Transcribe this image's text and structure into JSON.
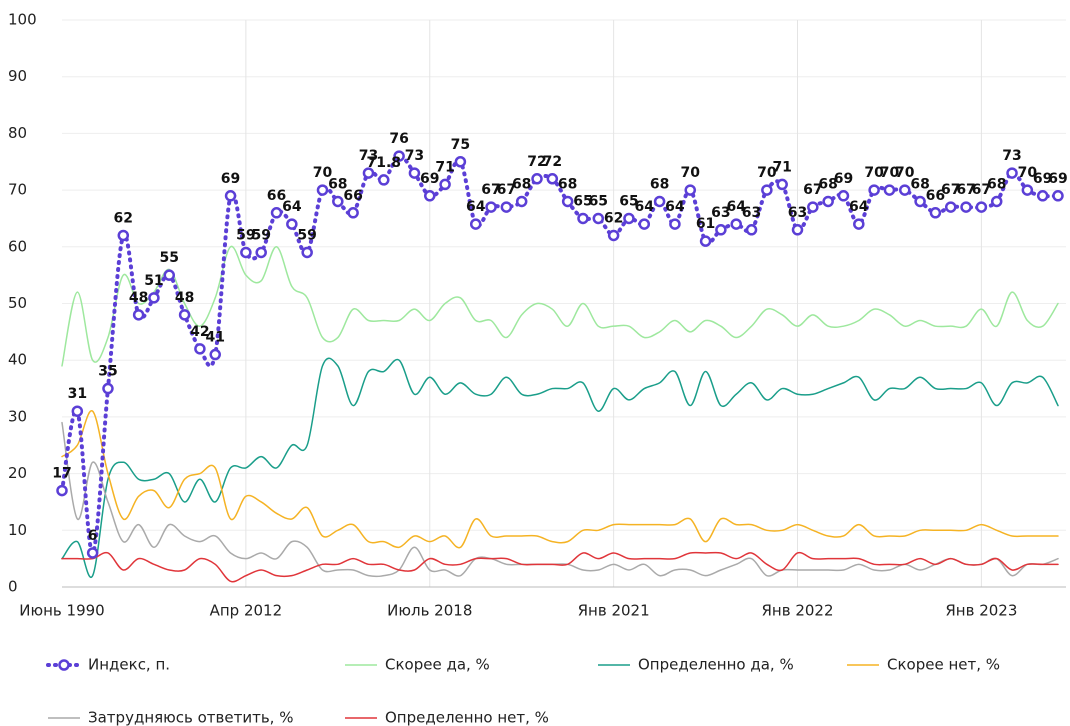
{
  "chart_data": {
    "type": "line",
    "categories": [
      "Июнь 1990",
      null,
      null,
      null,
      null,
      null,
      null,
      null,
      null,
      null,
      null,
      null,
      "Апр 2012",
      null,
      null,
      null,
      null,
      null,
      null,
      null,
      null,
      null,
      null,
      null,
      "Июль 2018",
      null,
      null,
      null,
      null,
      null,
      null,
      null,
      null,
      null,
      null,
      null,
      "Янв 2021",
      null,
      null,
      null,
      null,
      null,
      null,
      null,
      null,
      null,
      null,
      null,
      "Янв 2022",
      null,
      null,
      null,
      null,
      null,
      null,
      null,
      null,
      null,
      null,
      null,
      "Янв 2023",
      null,
      null,
      null,
      null,
      null
    ],
    "series": [
      {
        "name": "Индекс, п.",
        "color": "#5b3fd6",
        "style": "dotted-markers",
        "show_labels": true,
        "values": [
          17,
          31,
          6,
          35,
          62,
          48,
          51,
          55,
          48,
          42,
          41,
          69,
          59,
          59,
          66,
          64,
          59,
          70,
          68,
          66,
          73,
          71.8,
          76,
          73,
          69,
          71,
          75,
          64,
          67,
          67,
          68,
          72,
          72,
          68,
          65,
          65,
          62,
          65,
          64,
          68,
          64,
          70,
          61,
          63,
          64,
          63,
          70,
          71,
          63,
          67,
          68,
          69,
          64,
          70,
          70,
          70,
          68,
          66,
          67,
          67,
          67,
          68,
          73,
          70,
          69,
          69
        ]
      },
      {
        "name": "Скорее да, %",
        "color": "#9ee89e",
        "values": [
          39,
          52,
          40,
          44,
          55,
          50,
          52,
          56,
          50,
          46,
          51,
          60,
          55,
          54,
          60,
          53,
          51,
          44,
          44,
          49,
          47,
          47,
          47,
          49,
          47,
          50,
          51,
          47,
          47,
          44,
          48,
          50,
          49,
          46,
          50,
          46,
          46,
          46,
          44,
          45,
          47,
          45,
          47,
          46,
          44,
          46,
          49,
          48,
          46,
          48,
          46,
          46,
          47,
          49,
          48,
          46,
          47,
          46,
          46,
          46,
          49,
          46,
          52,
          47,
          46,
          50
        ]
      },
      {
        "name": "Определенно да, %",
        "color": "#1a9e8a",
        "values": [
          5,
          8,
          2,
          19,
          22,
          19,
          19,
          20,
          15,
          19,
          15,
          21,
          21,
          23,
          21,
          25,
          25,
          39,
          39,
          32,
          38,
          38,
          40,
          34,
          37,
          34,
          36,
          34,
          34,
          37,
          34,
          34,
          35,
          35,
          36,
          31,
          35,
          33,
          35,
          36,
          38,
          32,
          38,
          32,
          34,
          36,
          33,
          35,
          34,
          34,
          35,
          36,
          37,
          33,
          35,
          35,
          37,
          35,
          35,
          35,
          36,
          32,
          36,
          36,
          37,
          32
        ]
      },
      {
        "name": "Скорее нет, %",
        "color": "#f5b324",
        "values": [
          23,
          25,
          31,
          20,
          12,
          16,
          17,
          14,
          19,
          20,
          21,
          12,
          16,
          15,
          13,
          12,
          14,
          9,
          10,
          11,
          8,
          8,
          7,
          9,
          8,
          9,
          7,
          12,
          9,
          9,
          9,
          9,
          8,
          8,
          10,
          10,
          11,
          11,
          11,
          11,
          11,
          12,
          8,
          12,
          11,
          11,
          10,
          10,
          11,
          10,
          9,
          9,
          11,
          9,
          9,
          9,
          10,
          10,
          10,
          10,
          11,
          10,
          9,
          9,
          9,
          9
        ]
      },
      {
        "name": "Затрудняюсь ответить, %",
        "color": "#aaaaaa",
        "values": [
          29,
          12,
          22,
          15,
          8,
          11,
          7,
          11,
          9,
          8,
          9,
          6,
          5,
          6,
          5,
          8,
          7,
          3,
          3,
          3,
          2,
          2,
          3,
          7,
          3,
          3,
          2,
          5,
          5,
          4,
          4,
          4,
          4,
          4,
          3,
          3,
          4,
          3,
          4,
          2,
          3,
          3,
          2,
          3,
          4,
          5,
          2,
          3,
          3,
          3,
          3,
          3,
          4,
          3,
          3,
          4,
          3,
          4,
          5,
          4,
          4,
          5,
          2,
          4,
          4,
          5
        ]
      },
      {
        "name": "Определенно нет, %",
        "color": "#e0353a",
        "values": [
          5,
          5,
          5,
          6,
          3,
          5,
          4,
          3,
          3,
          5,
          4,
          1,
          2,
          3,
          2,
          2,
          3,
          4,
          4,
          5,
          4,
          4,
          3,
          3,
          5,
          4,
          4,
          5,
          5,
          5,
          4,
          4,
          4,
          4,
          6,
          5,
          6,
          5,
          5,
          5,
          5,
          6,
          6,
          6,
          5,
          6,
          4,
          3,
          6,
          5,
          5,
          5,
          5,
          4,
          4,
          4,
          5,
          4,
          5,
          4,
          4,
          5,
          3,
          4,
          4,
          4
        ]
      }
    ],
    "ylim": [
      0,
      100
    ],
    "yticks": [
      0,
      10,
      20,
      30,
      40,
      50,
      60,
      70,
      80,
      90,
      100
    ],
    "grid": true,
    "legend": "bottom"
  }
}
